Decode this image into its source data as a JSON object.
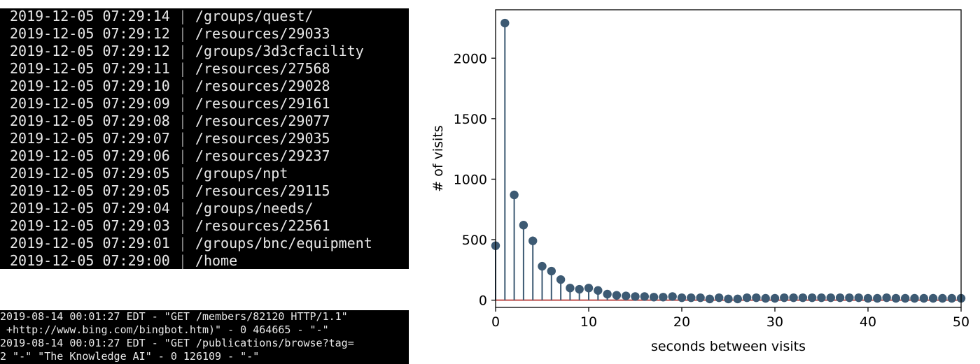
{
  "log_terminal": {
    "separator": "|",
    "rows": [
      {
        "timestamp": "2019-12-05 07:29:14",
        "path": "/groups/quest/"
      },
      {
        "timestamp": "2019-12-05 07:29:12",
        "path": "/resources/29033"
      },
      {
        "timestamp": "2019-12-05 07:29:12",
        "path": "/groups/3d3cfacility"
      },
      {
        "timestamp": "2019-12-05 07:29:11",
        "path": "/resources/27568"
      },
      {
        "timestamp": "2019-12-05 07:29:10",
        "path": "/resources/29028"
      },
      {
        "timestamp": "2019-12-05 07:29:09",
        "path": "/resources/29161"
      },
      {
        "timestamp": "2019-12-05 07:29:08",
        "path": "/resources/29077"
      },
      {
        "timestamp": "2019-12-05 07:29:07",
        "path": "/resources/29035"
      },
      {
        "timestamp": "2019-12-05 07:29:06",
        "path": "/resources/29237"
      },
      {
        "timestamp": "2019-12-05 07:29:05",
        "path": "/groups/npt"
      },
      {
        "timestamp": "2019-12-05 07:29:05",
        "path": "/resources/29115"
      },
      {
        "timestamp": "2019-12-05 07:29:04",
        "path": "/groups/needs/"
      },
      {
        "timestamp": "2019-12-05 07:29:03",
        "path": "/resources/22561"
      },
      {
        "timestamp": "2019-12-05 07:29:01",
        "path": "/groups/bnc/equipment"
      },
      {
        "timestamp": "2019-12-05 07:29:00",
        "path": "/home"
      }
    ]
  },
  "access_terminal": {
    "lines": [
      "2019-08-14 00:01:27 EDT - \"GET /members/82120 HTTP/1.1\"",
      " +http://www.bing.com/bingbot.htm)\" - 0 464665 - \"-\"",
      "2019-08-14 00:01:27 EDT - \"GET /publications/browse?tag=",
      "2 \"-\" \"The Knowledge AI\" - 0 126109 - \"-\""
    ]
  },
  "chart_data": {
    "type": "stem",
    "title": "",
    "xlabel": "seconds between visits",
    "ylabel": "# of visits",
    "xlim": [
      0,
      50
    ],
    "ylim": [
      -60,
      2400
    ],
    "x_ticks": [
      0,
      10,
      20,
      30,
      40,
      50
    ],
    "y_ticks": [
      0,
      500,
      1000,
      1500,
      2000
    ],
    "grid": false,
    "legend": "none",
    "colors": {
      "stem": "#3d5a73",
      "marker": "#3d5a73",
      "baseline": "#c0504d"
    },
    "x": [
      0,
      1,
      2,
      3,
      4,
      5,
      6,
      7,
      8,
      9,
      10,
      11,
      12,
      13,
      14,
      15,
      16,
      17,
      18,
      19,
      20,
      21,
      22,
      23,
      24,
      25,
      26,
      27,
      28,
      29,
      30,
      31,
      32,
      33,
      34,
      35,
      36,
      37,
      38,
      39,
      40,
      41,
      42,
      43,
      44,
      45,
      46,
      47,
      48,
      49,
      50
    ],
    "values": [
      450,
      2290,
      870,
      620,
      490,
      280,
      240,
      170,
      100,
      90,
      100,
      80,
      50,
      40,
      35,
      30,
      30,
      25,
      25,
      30,
      20,
      20,
      20,
      10,
      20,
      10,
      10,
      20,
      20,
      15,
      15,
      20,
      20,
      20,
      20,
      20,
      20,
      20,
      20,
      20,
      15,
      15,
      20,
      15,
      15,
      15,
      15,
      15,
      15,
      15,
      15
    ]
  }
}
